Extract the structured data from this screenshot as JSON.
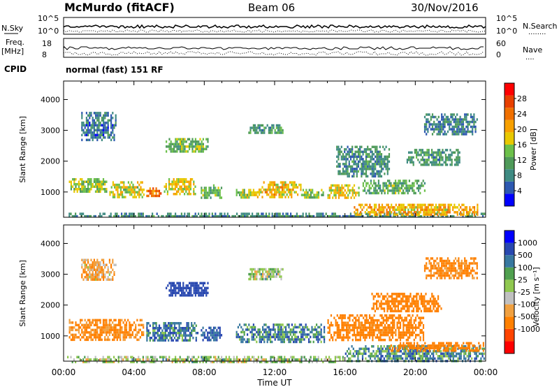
{
  "header": {
    "title": "McMurdo (fitACF)",
    "beam": "Beam 06",
    "date": "30/Nov/2016"
  },
  "summary": {
    "nsky_label": "N.Sky",
    "nsky_ticks": [
      "10^5",
      "10^0"
    ],
    "nsearch_label": "N.Search",
    "nsearch_dots": "........",
    "freq_label": "Freq.",
    "freq_unit": "[MHz]",
    "freq_ticks": [
      "18",
      "8"
    ],
    "nave_label": "Nave",
    "nave_ticks": [
      "60",
      "0"
    ],
    "nave_dots": "....",
    "cpid_label": "CPID",
    "cpid_text": "normal (fast) 151 RF"
  },
  "colors": {
    "power": [
      "#0000ff",
      "#2d58b0",
      "#3f8b83",
      "#4f9a5a",
      "#6cc04a",
      "#e8c800",
      "#f7a000",
      "#f07000",
      "#e84000",
      "#ff0000"
    ],
    "velocity": [
      "#ff0000",
      "#ff4400",
      "#ff8000",
      "#f0a040",
      "#c0c0c0",
      "#90c850",
      "#50a050",
      "#3878a0",
      "#2848b0",
      "#0000ff"
    ]
  },
  "chart_data": [
    {
      "type": "heatmap",
      "name": "power",
      "xlabel": "Time UT",
      "ylabel": "Slant Range [km]",
      "x_ticks": [
        "00:00",
        "04:00",
        "08:00",
        "12:00",
        "16:00",
        "20:00",
        "00:00"
      ],
      "y_ticks": [
        1000,
        2000,
        3000,
        4000
      ],
      "ylim": [
        180,
        4600
      ],
      "xlim_hours": [
        0,
        24
      ],
      "colorbar_label": "Power [dB]",
      "colorbar_ticks": [
        4,
        8,
        12,
        16,
        20,
        24,
        28
      ],
      "regions": [
        {
          "t": [
            0.2,
            23.9
          ],
          "r": [
            180,
            330
          ],
          "v": 9
        },
        {
          "t": [
            16.5,
            23.5
          ],
          "r": [
            280,
            620
          ],
          "v": 20
        },
        {
          "t": [
            0.3,
            2.4
          ],
          "r": [
            1000,
            1450
          ],
          "v": 15
        },
        {
          "t": [
            2.6,
            4.6
          ],
          "r": [
            850,
            1350
          ],
          "v": 17
        },
        {
          "t": [
            4.7,
            5.5
          ],
          "r": [
            850,
            1150
          ],
          "v": 23
        },
        {
          "t": [
            5.7,
            7.5
          ],
          "r": [
            950,
            1450
          ],
          "v": 18
        },
        {
          "t": [
            7.8,
            9.0
          ],
          "r": [
            850,
            1250
          ],
          "v": 13
        },
        {
          "t": [
            9.8,
            11.0
          ],
          "r": [
            800,
            1100
          ],
          "v": 16
        },
        {
          "t": [
            11.0,
            13.5
          ],
          "r": [
            850,
            1350
          ],
          "v": 19
        },
        {
          "t": [
            13.5,
            14.8
          ],
          "r": [
            800,
            1100
          ],
          "v": 14
        },
        {
          "t": [
            15.0,
            16.8
          ],
          "r": [
            850,
            1250
          ],
          "v": 18
        },
        {
          "t": [
            17.0,
            20.5
          ],
          "r": [
            950,
            1400
          ],
          "v": 12
        },
        {
          "t": [
            5.8,
            8.2
          ],
          "r": [
            2300,
            2750
          ],
          "v": 13
        },
        {
          "t": [
            10.5,
            12.5
          ],
          "r": [
            2900,
            3200
          ],
          "v": 10
        },
        {
          "t": [
            1.0,
            3.0
          ],
          "r": [
            2700,
            3600
          ],
          "v": 7
        },
        {
          "t": [
            15.5,
            18.5
          ],
          "r": [
            1500,
            2500
          ],
          "v": 9
        },
        {
          "t": [
            19.5,
            22.5
          ],
          "r": [
            1900,
            2400
          ],
          "v": 10
        },
        {
          "t": [
            20.5,
            23.5
          ],
          "r": [
            2900,
            3550
          ],
          "v": 8
        }
      ]
    },
    {
      "type": "heatmap",
      "name": "velocity",
      "xlabel": "Time UT",
      "ylabel": "Slant Range [km]",
      "x_ticks": [
        "00:00",
        "04:00",
        "08:00",
        "12:00",
        "16:00",
        "20:00",
        "00:00"
      ],
      "y_ticks": [
        1000,
        2000,
        3000,
        4000
      ],
      "ylim": [
        180,
        4600
      ],
      "xlim_hours": [
        0,
        24
      ],
      "colorbar_label": "Velocity [m s⁻¹]",
      "colorbar_ticks": [
        "1000",
        "500",
        "100",
        "25",
        "-25",
        "-100",
        "-500",
        "-1000"
      ],
      "regions": [
        {
          "t": [
            0.2,
            16.0
          ],
          "r": [
            180,
            350
          ],
          "v": -5
        },
        {
          "t": [
            16.0,
            23.9
          ],
          "r": [
            180,
            700
          ],
          "v": 60
        },
        {
          "t": [
            18.5,
            23.9
          ],
          "r": [
            550,
            800
          ],
          "v": -200
        },
        {
          "t": [
            0.3,
            4.5
          ],
          "r": [
            850,
            1550
          ],
          "v": -120
        },
        {
          "t": [
            4.7,
            7.6
          ],
          "r": [
            850,
            1450
          ],
          "v": 80
        },
        {
          "t": [
            7.8,
            9.0
          ],
          "r": [
            850,
            1300
          ],
          "v": 120
        },
        {
          "t": [
            9.8,
            14.8
          ],
          "r": [
            800,
            1400
          ],
          "v": 70
        },
        {
          "t": [
            15.0,
            20.5
          ],
          "r": [
            900,
            1700
          ],
          "v": -160
        },
        {
          "t": [
            17.5,
            21.5
          ],
          "r": [
            1800,
            2400
          ],
          "v": -200
        },
        {
          "t": [
            5.8,
            8.2
          ],
          "r": [
            2300,
            2750
          ],
          "v": 200
        },
        {
          "t": [
            10.5,
            12.5
          ],
          "r": [
            2850,
            3200
          ],
          "v": -5
        },
        {
          "t": [
            1.0,
            3.0
          ],
          "r": [
            2800,
            3500
          ],
          "v": -80
        },
        {
          "t": [
            20.5,
            23.5
          ],
          "r": [
            2900,
            3550
          ],
          "v": -130
        }
      ]
    }
  ]
}
